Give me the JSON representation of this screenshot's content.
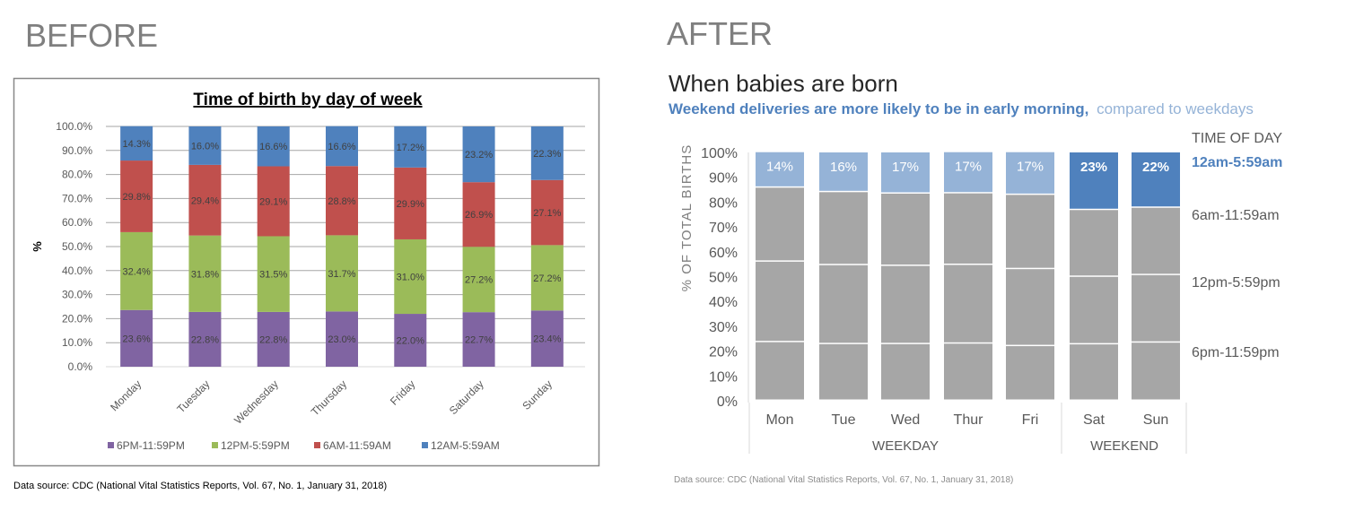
{
  "panels": {
    "before_label": "BEFORE",
    "after_label": "AFTER"
  },
  "chart_data": [
    {
      "type": "bar",
      "stacked": true,
      "title": "Time of birth by day of week",
      "ylabel": "%",
      "xlabel": "",
      "ylim": [
        0,
        100
      ],
      "yticks": [
        "0.0%",
        "10.0%",
        "20.0%",
        "30.0%",
        "40.0%",
        "50.0%",
        "60.0%",
        "70.0%",
        "80.0%",
        "90.0%",
        "100.0%"
      ],
      "grid": true,
      "legend_position": "bottom",
      "categories": [
        "Monday",
        "Tuesday",
        "Wednesday",
        "Thursday",
        "Friday",
        "Saturday",
        "Sunday"
      ],
      "series": [
        {
          "name": "6PM-11:59PM",
          "color": "#8064a2",
          "values": [
            23.6,
            22.8,
            22.8,
            23.0,
            22.0,
            22.7,
            23.4
          ]
        },
        {
          "name": "12PM-5:59PM",
          "color": "#9bbb59",
          "values": [
            32.4,
            31.8,
            31.5,
            31.7,
            31.0,
            27.2,
            27.2
          ]
        },
        {
          "name": "6AM-11:59AM",
          "color": "#c0504d",
          "values": [
            29.8,
            29.4,
            29.1,
            28.8,
            29.9,
            26.9,
            27.1
          ]
        },
        {
          "name": "12AM-5:59AM",
          "color": "#4f81bd",
          "values": [
            14.3,
            16.0,
            16.6,
            16.6,
            17.2,
            23.2,
            22.3
          ]
        }
      ],
      "source": "Data source: CDC (National Vital Statistics Reports, Vol. 67, No. 1, January 31, 2018)"
    },
    {
      "type": "bar",
      "stacked": true,
      "title": "When babies are born",
      "subtitle_emphasis": "Weekend deliveries are more likely to be in early morning,",
      "subtitle_rest": "compared to weekdays",
      "ylabel": "% OF TOTAL BIRTHS",
      "ylim": [
        0,
        100
      ],
      "yticks": [
        "0%",
        "10%",
        "20%",
        "30%",
        "40%",
        "50%",
        "60%",
        "70%",
        "80%",
        "90%",
        "100%"
      ],
      "categories": [
        "Mon",
        "Tue",
        "Wed",
        "Thur",
        "Fri",
        "Sat",
        "Sun"
      ],
      "groups": [
        {
          "label": "WEEKDAY",
          "count": 5
        },
        {
          "label": "WEEKEND",
          "count": 2
        }
      ],
      "legend_title": "TIME OF DAY",
      "legend_position": "right",
      "series": [
        {
          "name": "6pm-11:59pm",
          "values": [
            23.6,
            22.8,
            22.8,
            23.0,
            22.0,
            22.7,
            23.4
          ]
        },
        {
          "name": "12pm-5:59pm",
          "values": [
            32.4,
            31.8,
            31.5,
            31.7,
            31.0,
            27.2,
            27.2
          ]
        },
        {
          "name": "6am-11:59am",
          "values": [
            29.8,
            29.4,
            29.1,
            28.8,
            29.9,
            26.9,
            27.1
          ]
        },
        {
          "name": "12am-5:59am",
          "values": [
            14.3,
            16.0,
            16.6,
            16.6,
            17.2,
            23.2,
            22.3
          ],
          "data_labels": [
            "14%",
            "16%",
            "17%",
            "17%",
            "17%",
            "23%",
            "22%"
          ]
        }
      ],
      "colors": {
        "gray": "#a6a6a6",
        "weekday_highlight": "#95b3d7",
        "weekend_highlight": "#4f81bd",
        "text_gray": "#595959"
      },
      "source": "Data source: CDC (National Vital Statistics Reports, Vol. 67, No. 1, January 31, 2018)"
    }
  ]
}
